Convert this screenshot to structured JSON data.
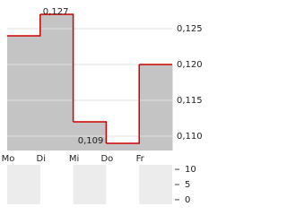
{
  "chart_data": [
    {
      "type": "step-area",
      "categories": [
        "Mo",
        "Di",
        "Mi",
        "Do",
        "Fr"
      ],
      "values": [
        0.124,
        0.127,
        0.112,
        0.109,
        0.12
      ],
      "value_labels": [
        null,
        "0,127",
        null,
        "0,109",
        null
      ],
      "color": "#cc0000",
      "fill": "#c4c4c4",
      "ylim": [
        0.108,
        0.128
      ],
      "yticks": [
        {
          "value": 0.11,
          "label": "0,110"
        },
        {
          "value": 0.115,
          "label": "0,115"
        },
        {
          "value": 0.12,
          "label": "0,120"
        },
        {
          "value": 0.125,
          "label": "0,125"
        }
      ],
      "grid": true
    },
    {
      "type": "volume",
      "ylim": [
        -1.5,
        11.5
      ],
      "yticks": [
        0,
        5,
        10
      ],
      "band_color": "#ececec"
    }
  ]
}
